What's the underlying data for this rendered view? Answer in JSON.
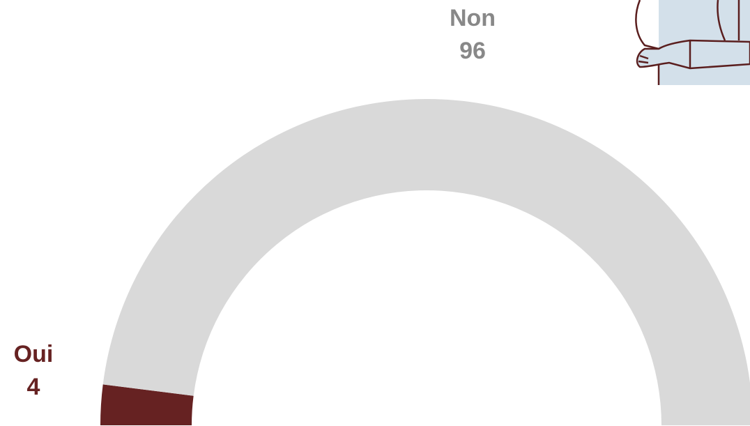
{
  "chart_data": {
    "type": "pie",
    "categories": [
      "Oui",
      "Non"
    ],
    "values": [
      4,
      96
    ],
    "colors": [
      "#662222",
      "#d9d9d9"
    ],
    "label_colors": [
      "#662222",
      "#888888"
    ]
  }
}
